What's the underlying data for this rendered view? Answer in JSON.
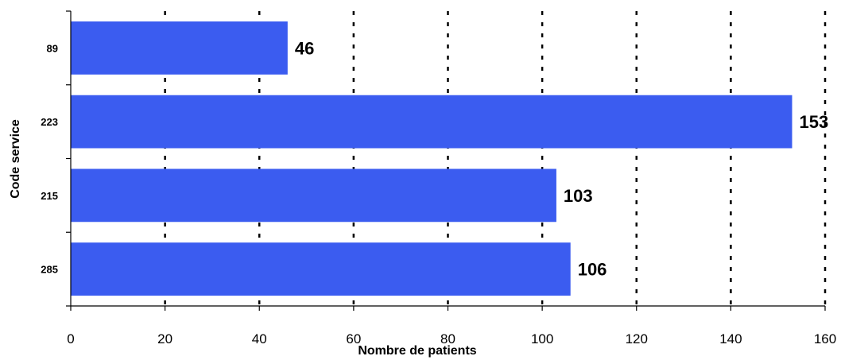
{
  "chart_data": {
    "type": "bar",
    "orientation": "horizontal",
    "categories": [
      "89",
      "223",
      "215",
      "285"
    ],
    "values": [
      46,
      153,
      103,
      106
    ],
    "data_labels": [
      "46",
      "153",
      "103",
      "106"
    ],
    "xlabel": "Nombre de patients",
    "ylabel": "Code service",
    "xlim": [
      0,
      160
    ],
    "xticks": [
      0,
      20,
      40,
      60,
      80,
      100,
      120,
      140,
      160
    ],
    "xtick_labels": [
      "0",
      "20",
      "40",
      "60",
      "80",
      "100",
      "120",
      "140",
      "160"
    ],
    "grid": "vertical dashed",
    "legend": "none",
    "bar_color": "#3b5cf0"
  }
}
